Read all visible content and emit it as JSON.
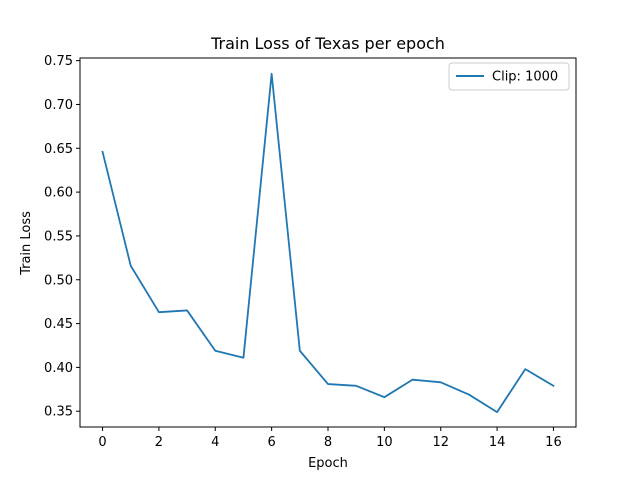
{
  "chart_data": {
    "type": "line",
    "title": "Train Loss of Texas per epoch",
    "xlabel": "Epoch",
    "ylabel": "Train Loss",
    "x": [
      0,
      1,
      2,
      3,
      4,
      5,
      6,
      7,
      8,
      9,
      10,
      11,
      12,
      13,
      14,
      15,
      16
    ],
    "series": [
      {
        "name": "Clip: 1000",
        "color": "#1f77b4",
        "values": [
          0.646,
          0.516,
          0.463,
          0.465,
          0.419,
          0.411,
          0.735,
          0.419,
          0.381,
          0.379,
          0.366,
          0.386,
          0.383,
          0.369,
          0.349,
          0.398,
          0.379
        ]
      }
    ],
    "xlim": [
      -0.8,
      16.8
    ],
    "ylim": [
      0.332,
      0.753
    ],
    "xticks": [
      0,
      2,
      4,
      6,
      8,
      10,
      12,
      14,
      16
    ],
    "yticks": [
      0.35,
      0.4,
      0.45,
      0.5,
      0.55,
      0.6,
      0.65,
      0.7,
      0.75
    ],
    "grid": false,
    "legend": "top-right"
  }
}
